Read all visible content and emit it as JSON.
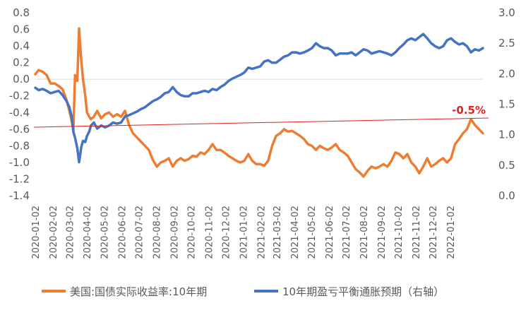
{
  "chart_data": {
    "type": "line",
    "title": "",
    "xlabel": "",
    "ylabel": "",
    "x_ticks": [
      "2020-01-02",
      "2020-02-02",
      "2020-03-02",
      "2020-04-02",
      "2020-05-02",
      "2020-06-02",
      "2020-07-02",
      "2020-08-02",
      "2020-09-02",
      "2020-10-02",
      "2020-11-02",
      "2020-12-02",
      "2021-01-02",
      "2021-02-02",
      "2021-03-02",
      "2021-04-02",
      "2021-05-02",
      "2021-06-02",
      "2021-07-02",
      "2021-08-02",
      "2021-09-02",
      "2021-10-02",
      "2021-11-02",
      "2021-12-02",
      "2022-01-02"
    ],
    "x_range": [
      "2020-01-02",
      "2022-02-28"
    ],
    "y_left": {
      "range": [
        -1.4,
        0.8
      ],
      "step": 0.2,
      "tick_labels": [
        "0.8",
        "0.6",
        "0.4",
        "0.2",
        "0.0",
        "-0.2",
        "-0.4",
        "-0.6",
        "-0.8",
        "-1.0",
        "-1.2",
        "-1.4"
      ]
    },
    "y_right": {
      "range": [
        0.0,
        3.0
      ],
      "step": 0.5,
      "tick_labels": [
        "3.0",
        "2.5",
        "2.0",
        "1.5",
        "1.0",
        "0.5",
        "0.0"
      ]
    },
    "grid": false,
    "legend_position": "bottom",
    "reference_line": {
      "axis": "left",
      "value": -0.5,
      "label": "-0.5%",
      "color": "#e0231f"
    },
    "series": [
      {
        "name": "美国:国债实际收益率:10年期",
        "axis": "left",
        "color": "#ed7d31",
        "points": [
          [
            "2020-01-02",
            0.06
          ],
          [
            "2020-01-08",
            0.11
          ],
          [
            "2020-01-15",
            0.09
          ],
          [
            "2020-01-22",
            0.05
          ],
          [
            "2020-01-29",
            -0.05
          ],
          [
            "2020-02-05",
            -0.05
          ],
          [
            "2020-02-12",
            -0.08
          ],
          [
            "2020-02-19",
            -0.12
          ],
          [
            "2020-02-26",
            -0.25
          ],
          [
            "2020-03-02",
            -0.38
          ],
          [
            "2020-03-06",
            -0.5
          ],
          [
            "2020-03-09",
            -0.62
          ],
          [
            "2020-03-12",
            0.05
          ],
          [
            "2020-03-16",
            -0.02
          ],
          [
            "2020-03-19",
            0.61
          ],
          [
            "2020-03-23",
            0.22
          ],
          [
            "2020-03-26",
            0.0
          ],
          [
            "2020-03-30",
            -0.2
          ],
          [
            "2020-04-02",
            -0.4
          ],
          [
            "2020-04-06",
            -0.45
          ],
          [
            "2020-04-09",
            -0.48
          ],
          [
            "2020-04-14",
            -0.45
          ],
          [
            "2020-04-20",
            -0.38
          ],
          [
            "2020-04-27",
            -0.47
          ],
          [
            "2020-05-04",
            -0.42
          ],
          [
            "2020-05-11",
            -0.4
          ],
          [
            "2020-05-18",
            -0.45
          ],
          [
            "2020-05-25",
            -0.42
          ],
          [
            "2020-06-01",
            -0.45
          ],
          [
            "2020-06-08",
            -0.38
          ],
          [
            "2020-06-15",
            -0.55
          ],
          [
            "2020-06-22",
            -0.65
          ],
          [
            "2020-06-29",
            -0.7
          ],
          [
            "2020-07-06",
            -0.75
          ],
          [
            "2020-07-13",
            -0.8
          ],
          [
            "2020-07-20",
            -0.85
          ],
          [
            "2020-07-27",
            -0.97
          ],
          [
            "2020-08-03",
            -1.05
          ],
          [
            "2020-08-10",
            -1.0
          ],
          [
            "2020-08-17",
            -0.98
          ],
          [
            "2020-08-24",
            -0.95
          ],
          [
            "2020-08-31",
            -1.05
          ],
          [
            "2020-09-07",
            -0.98
          ],
          [
            "2020-09-14",
            -0.95
          ],
          [
            "2020-09-21",
            -0.98
          ],
          [
            "2020-09-28",
            -0.96
          ],
          [
            "2020-10-05",
            -0.92
          ],
          [
            "2020-10-12",
            -0.93
          ],
          [
            "2020-10-19",
            -0.88
          ],
          [
            "2020-10-26",
            -0.9
          ],
          [
            "2020-11-02",
            -0.85
          ],
          [
            "2020-11-09",
            -0.78
          ],
          [
            "2020-11-16",
            -0.85
          ],
          [
            "2020-11-23",
            -0.85
          ],
          [
            "2020-11-30",
            -0.88
          ],
          [
            "2020-12-07",
            -0.92
          ],
          [
            "2020-12-14",
            -0.95
          ],
          [
            "2020-12-21",
            -0.98
          ],
          [
            "2020-12-28",
            -1.0
          ],
          [
            "2021-01-04",
            -0.98
          ],
          [
            "2021-01-11",
            -0.9
          ],
          [
            "2021-01-18",
            -0.98
          ],
          [
            "2021-01-25",
            -1.02
          ],
          [
            "2021-02-01",
            -1.02
          ],
          [
            "2021-02-08",
            -1.04
          ],
          [
            "2021-02-15",
            -0.98
          ],
          [
            "2021-02-22",
            -0.8
          ],
          [
            "2021-03-01",
            -0.68
          ],
          [
            "2021-03-08",
            -0.65
          ],
          [
            "2021-03-15",
            -0.6
          ],
          [
            "2021-03-22",
            -0.63
          ],
          [
            "2021-03-29",
            -0.62
          ],
          [
            "2021-04-05",
            -0.65
          ],
          [
            "2021-04-12",
            -0.68
          ],
          [
            "2021-04-19",
            -0.72
          ],
          [
            "2021-04-26",
            -0.78
          ],
          [
            "2021-05-03",
            -0.8
          ],
          [
            "2021-05-10",
            -0.85
          ],
          [
            "2021-05-17",
            -0.8
          ],
          [
            "2021-05-24",
            -0.83
          ],
          [
            "2021-05-31",
            -0.85
          ],
          [
            "2021-06-07",
            -0.82
          ],
          [
            "2021-06-14",
            -0.78
          ],
          [
            "2021-06-21",
            -0.85
          ],
          [
            "2021-06-28",
            -0.88
          ],
          [
            "2021-07-05",
            -0.92
          ],
          [
            "2021-07-12",
            -1.0
          ],
          [
            "2021-07-19",
            -1.08
          ],
          [
            "2021-07-26",
            -1.12
          ],
          [
            "2021-08-02",
            -1.17
          ],
          [
            "2021-08-09",
            -1.1
          ],
          [
            "2021-08-16",
            -1.05
          ],
          [
            "2021-08-23",
            -1.07
          ],
          [
            "2021-08-30",
            -1.05
          ],
          [
            "2021-09-06",
            -1.02
          ],
          [
            "2021-09-13",
            -1.05
          ],
          [
            "2021-09-20",
            -0.98
          ],
          [
            "2021-09-27",
            -0.88
          ],
          [
            "2021-10-04",
            -0.9
          ],
          [
            "2021-10-11",
            -0.95
          ],
          [
            "2021-10-18",
            -0.9
          ],
          [
            "2021-10-25",
            -1.0
          ],
          [
            "2021-11-01",
            -1.05
          ],
          [
            "2021-11-08",
            -1.13
          ],
          [
            "2021-11-15",
            -1.05
          ],
          [
            "2021-11-22",
            -0.95
          ],
          [
            "2021-11-29",
            -1.05
          ],
          [
            "2021-12-06",
            -1.02
          ],
          [
            "2021-12-13",
            -0.98
          ],
          [
            "2021-12-20",
            -0.95
          ],
          [
            "2021-12-27",
            -1.0
          ],
          [
            "2022-01-03",
            -0.95
          ],
          [
            "2022-01-10",
            -0.78
          ],
          [
            "2022-01-17",
            -0.72
          ],
          [
            "2022-01-24",
            -0.65
          ],
          [
            "2022-01-31",
            -0.6
          ],
          [
            "2022-02-07",
            -0.48
          ],
          [
            "2022-02-14",
            -0.55
          ],
          [
            "2022-02-21",
            -0.6
          ],
          [
            "2022-02-28",
            -0.65
          ]
        ]
      },
      {
        "name": "10年期盈亏平衡通胀预期（右轴）",
        "axis": "right",
        "color": "#4472c4",
        "points": [
          [
            "2020-01-02",
            1.77
          ],
          [
            "2020-01-08",
            1.73
          ],
          [
            "2020-01-15",
            1.75
          ],
          [
            "2020-01-22",
            1.72
          ],
          [
            "2020-01-29",
            1.68
          ],
          [
            "2020-02-05",
            1.7
          ],
          [
            "2020-02-12",
            1.72
          ],
          [
            "2020-02-19",
            1.65
          ],
          [
            "2020-02-26",
            1.55
          ],
          [
            "2020-03-02",
            1.45
          ],
          [
            "2020-03-06",
            1.3
          ],
          [
            "2020-03-09",
            1.05
          ],
          [
            "2020-03-12",
            0.95
          ],
          [
            "2020-03-16",
            0.78
          ],
          [
            "2020-03-19",
            0.55
          ],
          [
            "2020-03-23",
            0.8
          ],
          [
            "2020-03-26",
            0.9
          ],
          [
            "2020-03-30",
            0.88
          ],
          [
            "2020-04-02",
            0.98
          ],
          [
            "2020-04-06",
            1.05
          ],
          [
            "2020-04-09",
            1.15
          ],
          [
            "2020-04-14",
            1.2
          ],
          [
            "2020-04-20",
            1.1
          ],
          [
            "2020-04-27",
            1.15
          ],
          [
            "2020-05-04",
            1.12
          ],
          [
            "2020-05-11",
            1.15
          ],
          [
            "2020-05-18",
            1.2
          ],
          [
            "2020-05-25",
            1.18
          ],
          [
            "2020-06-01",
            1.2
          ],
          [
            "2020-06-08",
            1.3
          ],
          [
            "2020-06-15",
            1.32
          ],
          [
            "2020-06-22",
            1.35
          ],
          [
            "2020-06-29",
            1.38
          ],
          [
            "2020-07-06",
            1.42
          ],
          [
            "2020-07-13",
            1.45
          ],
          [
            "2020-07-20",
            1.5
          ],
          [
            "2020-07-27",
            1.55
          ],
          [
            "2020-08-03",
            1.58
          ],
          [
            "2020-08-10",
            1.62
          ],
          [
            "2020-08-17",
            1.68
          ],
          [
            "2020-08-24",
            1.7
          ],
          [
            "2020-08-31",
            1.78
          ],
          [
            "2020-09-07",
            1.7
          ],
          [
            "2020-09-14",
            1.65
          ],
          [
            "2020-09-21",
            1.63
          ],
          [
            "2020-09-28",
            1.63
          ],
          [
            "2020-10-05",
            1.68
          ],
          [
            "2020-10-12",
            1.68
          ],
          [
            "2020-10-19",
            1.7
          ],
          [
            "2020-10-26",
            1.72
          ],
          [
            "2020-11-02",
            1.7
          ],
          [
            "2020-11-09",
            1.75
          ],
          [
            "2020-11-16",
            1.73
          ],
          [
            "2020-11-23",
            1.78
          ],
          [
            "2020-11-30",
            1.82
          ],
          [
            "2020-12-07",
            1.88
          ],
          [
            "2020-12-14",
            1.92
          ],
          [
            "2020-12-21",
            1.95
          ],
          [
            "2020-12-28",
            1.98
          ],
          [
            "2021-01-04",
            2.02
          ],
          [
            "2021-01-11",
            2.1
          ],
          [
            "2021-01-18",
            2.08
          ],
          [
            "2021-01-25",
            2.1
          ],
          [
            "2021-02-01",
            2.12
          ],
          [
            "2021-02-08",
            2.2
          ],
          [
            "2021-02-15",
            2.22
          ],
          [
            "2021-02-22",
            2.18
          ],
          [
            "2021-03-01",
            2.18
          ],
          [
            "2021-03-08",
            2.23
          ],
          [
            "2021-03-15",
            2.28
          ],
          [
            "2021-03-22",
            2.3
          ],
          [
            "2021-03-29",
            2.35
          ],
          [
            "2021-04-05",
            2.35
          ],
          [
            "2021-04-12",
            2.33
          ],
          [
            "2021-04-19",
            2.35
          ],
          [
            "2021-04-26",
            2.38
          ],
          [
            "2021-05-03",
            2.42
          ],
          [
            "2021-05-10",
            2.5
          ],
          [
            "2021-05-17",
            2.45
          ],
          [
            "2021-05-24",
            2.42
          ],
          [
            "2021-05-31",
            2.42
          ],
          [
            "2021-06-07",
            2.38
          ],
          [
            "2021-06-14",
            2.3
          ],
          [
            "2021-06-21",
            2.33
          ],
          [
            "2021-06-28",
            2.33
          ],
          [
            "2021-07-05",
            2.33
          ],
          [
            "2021-07-12",
            2.35
          ],
          [
            "2021-07-19",
            2.3
          ],
          [
            "2021-07-26",
            2.35
          ],
          [
            "2021-08-02",
            2.4
          ],
          [
            "2021-08-09",
            2.38
          ],
          [
            "2021-08-16",
            2.33
          ],
          [
            "2021-08-23",
            2.35
          ],
          [
            "2021-08-30",
            2.37
          ],
          [
            "2021-09-06",
            2.35
          ],
          [
            "2021-09-13",
            2.33
          ],
          [
            "2021-09-20",
            2.3
          ],
          [
            "2021-09-27",
            2.35
          ],
          [
            "2021-10-04",
            2.42
          ],
          [
            "2021-10-11",
            2.48
          ],
          [
            "2021-10-18",
            2.55
          ],
          [
            "2021-10-25",
            2.58
          ],
          [
            "2021-11-01",
            2.55
          ],
          [
            "2021-11-08",
            2.6
          ],
          [
            "2021-11-15",
            2.65
          ],
          [
            "2021-11-22",
            2.58
          ],
          [
            "2021-11-29",
            2.5
          ],
          [
            "2021-12-06",
            2.45
          ],
          [
            "2021-12-13",
            2.42
          ],
          [
            "2021-12-20",
            2.45
          ],
          [
            "2021-12-27",
            2.55
          ],
          [
            "2022-01-03",
            2.58
          ],
          [
            "2022-01-10",
            2.52
          ],
          [
            "2022-01-17",
            2.48
          ],
          [
            "2022-01-24",
            2.5
          ],
          [
            "2022-01-31",
            2.45
          ],
          [
            "2022-02-07",
            2.35
          ],
          [
            "2022-02-14",
            2.4
          ],
          [
            "2022-02-21",
            2.38
          ],
          [
            "2022-02-28",
            2.42
          ]
        ]
      }
    ]
  }
}
